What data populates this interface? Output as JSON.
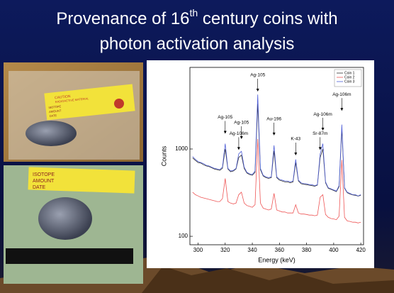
{
  "slide": {
    "title": {
      "before": "Provenance of 16",
      "sup": "th",
      "after": " century coins with",
      "line2": "photon activation analysis"
    }
  },
  "photos": [
    {
      "caution": "CAUTION",
      "warning": "RADIOACTIVE MATERIAL",
      "fields": [
        "ISOTOPE",
        "AMOUNT",
        "DATE"
      ]
    },
    {
      "fields": [
        "ISOTOPE",
        "AMOUNT",
        "DATE"
      ]
    }
  ],
  "chart_data": {
    "type": "line",
    "log_y": true,
    "x_label": "Energy (keV)",
    "y_label": "Counts",
    "xlim": [
      294,
      422
    ],
    "xticks": [
      300,
      320,
      340,
      360,
      380,
      400,
      420
    ],
    "ylim": [
      80,
      8600
    ],
    "yticks": [
      100,
      1000
    ],
    "legend": "top-right",
    "x": [
      296,
      298,
      300,
      302,
      304,
      306,
      308,
      310,
      312,
      314,
      316,
      318,
      320,
      322,
      324,
      326,
      328,
      330,
      332,
      334,
      336,
      338,
      340,
      342,
      344,
      346,
      348,
      350,
      352,
      354,
      356,
      358,
      360,
      362,
      364,
      366,
      368,
      370,
      372,
      374,
      376,
      378,
      380,
      382,
      384,
      386,
      388,
      390,
      392,
      394,
      396,
      398,
      400,
      402,
      404,
      406,
      408,
      410,
      412,
      414,
      416,
      418,
      420
    ],
    "series": [
      {
        "name": "Coin 1",
        "color": "#333333",
        "values": [
          790,
          740,
          700,
          690,
          660,
          640,
          630,
          610,
          590,
          580,
          570,
          600,
          1000,
          590,
          550,
          560,
          590,
          800,
          850,
          600,
          530,
          510,
          500,
          540,
          3300,
          580,
          490,
          470,
          460,
          470,
          950,
          470,
          440,
          430,
          420,
          420,
          410,
          420,
          700,
          430,
          400,
          395,
          390,
          385,
          380,
          375,
          385,
          800,
          1000,
          410,
          355,
          345,
          335,
          325,
          370,
          1700,
          355,
          315,
          305,
          298,
          295,
          288,
          295
        ]
      },
      {
        "name": "Coin 2",
        "color": "#ee5555",
        "values": [
          320,
          300,
          290,
          280,
          275,
          270,
          265,
          260,
          255,
          250,
          250,
          270,
          460,
          250,
          240,
          235,
          240,
          300,
          320,
          240,
          225,
          220,
          215,
          230,
          1300,
          240,
          210,
          205,
          200,
          205,
          310,
          200,
          195,
          190,
          190,
          185,
          185,
          185,
          230,
          185,
          180,
          180,
          178,
          175,
          175,
          172,
          175,
          280,
          300,
          178,
          165,
          160,
          158,
          155,
          170,
          750,
          165,
          150,
          148,
          145,
          145,
          142,
          145
        ]
      },
      {
        "name": "Coin 3",
        "color": "#4f5fd8",
        "values": [
          820,
          760,
          720,
          700,
          680,
          650,
          640,
          620,
          600,
          590,
          580,
          620,
          1150,
          600,
          560,
          570,
          600,
          880,
          940,
          620,
          540,
          520,
          510,
          560,
          4200,
          600,
          500,
          480,
          470,
          480,
          1100,
          480,
          450,
          440,
          430,
          430,
          420,
          430,
          760,
          440,
          410,
          400,
          400,
          390,
          390,
          380,
          390,
          880,
          1150,
          420,
          360,
          350,
          340,
          330,
          380,
          1900,
          360,
          320,
          310,
          300,
          300,
          290,
          300
        ]
      }
    ],
    "annotations": [
      {
        "text": "Ag-105",
        "x": 320,
        "y": 2300
      },
      {
        "text": "Ag-106m",
        "x": 330,
        "y": 1500
      },
      {
        "text": "Ag-105",
        "x": 332,
        "y": 2000
      },
      {
        "text": "Ag-105",
        "x": 344,
        "y": 7000
      },
      {
        "text": "Au-196",
        "x": 356,
        "y": 2200
      },
      {
        "text": "K-43",
        "x": 372,
        "y": 1300
      },
      {
        "text": "Sr-87m",
        "x": 390,
        "y": 1500
      },
      {
        "text": "Ag-106m",
        "x": 392,
        "y": 2500
      },
      {
        "text": "Ag-106m",
        "x": 406,
        "y": 4200
      }
    ]
  }
}
